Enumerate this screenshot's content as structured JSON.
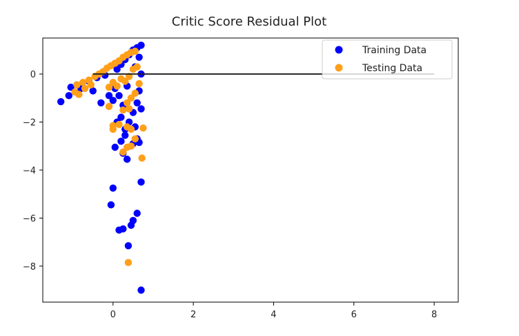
{
  "chart_data": {
    "type": "scatter",
    "title": "Critic Score Residual Plot",
    "xlabel": "",
    "ylabel": "",
    "xlim": [
      -1.75,
      8.6
    ],
    "ylim": [
      -9.5,
      1.5
    ],
    "xticks": [
      0,
      2,
      4,
      6,
      8
    ],
    "yticks": [
      0,
      -2,
      -4,
      -6,
      -8
    ],
    "grid": false,
    "legend": {
      "placement": "top-right"
    },
    "hline": {
      "y": 0,
      "xmin": -0.5,
      "xmax": 8.0,
      "color": "#222222"
    },
    "series": [
      {
        "name": "Training Data",
        "color": "#0000ff",
        "points": [
          [
            -1.3,
            -1.15
          ],
          [
            -1.1,
            -0.9
          ],
          [
            -1.05,
            -0.55
          ],
          [
            -0.9,
            -0.45
          ],
          [
            -0.8,
            -0.6
          ],
          [
            -0.6,
            -0.3
          ],
          [
            -0.5,
            -0.7
          ],
          [
            -0.4,
            -0.15
          ],
          [
            -0.3,
            -1.2
          ],
          [
            -0.2,
            -0.05
          ],
          [
            -0.1,
            -0.9
          ],
          [
            0.0,
            -1.1
          ],
          [
            0.05,
            -0.6
          ],
          [
            0.1,
            0.2
          ],
          [
            0.15,
            -0.9
          ],
          [
            0.2,
            0.4
          ],
          [
            0.25,
            -1.3
          ],
          [
            0.3,
            0.6
          ],
          [
            0.35,
            -0.5
          ],
          [
            0.4,
            0.8
          ],
          [
            0.45,
            0.9
          ],
          [
            0.5,
            1.0
          ],
          [
            0.55,
            0.3
          ],
          [
            0.6,
            1.1
          ],
          [
            0.7,
            1.2
          ],
          [
            0.65,
            0.7
          ],
          [
            0.7,
            0.0
          ],
          [
            0.65,
            -0.7
          ],
          [
            0.7,
            -1.45
          ],
          [
            0.6,
            -1.2
          ],
          [
            0.5,
            -1.6
          ],
          [
            0.4,
            -2.0
          ],
          [
            0.3,
            -2.3
          ],
          [
            0.2,
            -1.8
          ],
          [
            0.1,
            -2.0
          ],
          [
            0.55,
            -2.2
          ],
          [
            0.6,
            -2.7
          ],
          [
            0.65,
            -2.85
          ],
          [
            0.5,
            -2.9
          ],
          [
            0.3,
            -2.55
          ],
          [
            0.2,
            -2.8
          ],
          [
            0.05,
            -3.05
          ],
          [
            0.25,
            -3.3
          ],
          [
            0.35,
            -3.55
          ],
          [
            0.7,
            -4.5
          ],
          [
            0.0,
            -4.75
          ],
          [
            -0.05,
            -5.45
          ],
          [
            0.6,
            -5.8
          ],
          [
            0.5,
            -6.1
          ],
          [
            0.45,
            -6.3
          ],
          [
            0.25,
            -6.45
          ],
          [
            0.15,
            -6.5
          ],
          [
            0.38,
            -7.15
          ],
          [
            0.7,
            -9.0
          ]
        ]
      },
      {
        "name": "Testing Data",
        "color": "#ff9f1a",
        "points": [
          [
            -0.95,
            -0.75
          ],
          [
            -0.9,
            -0.45
          ],
          [
            -0.85,
            -0.85
          ],
          [
            -0.75,
            -0.35
          ],
          [
            -0.7,
            -0.6
          ],
          [
            -0.6,
            -0.25
          ],
          [
            -0.55,
            -0.45
          ],
          [
            -0.45,
            -0.1
          ],
          [
            -0.35,
            0.0
          ],
          [
            -0.25,
            0.1
          ],
          [
            -0.15,
            0.25
          ],
          [
            -0.05,
            0.35
          ],
          [
            0.05,
            0.45
          ],
          [
            0.15,
            0.55
          ],
          [
            0.25,
            0.7
          ],
          [
            0.35,
            0.8
          ],
          [
            0.45,
            0.9
          ],
          [
            0.55,
            0.95
          ],
          [
            0.6,
            0.3
          ],
          [
            0.5,
            0.2
          ],
          [
            0.4,
            -0.1
          ],
          [
            0.3,
            -0.3
          ],
          [
            0.2,
            -0.2
          ],
          [
            0.1,
            -0.5
          ],
          [
            0.0,
            -0.35
          ],
          [
            -0.1,
            -0.55
          ],
          [
            0.65,
            -0.4
          ],
          [
            0.55,
            -0.8
          ],
          [
            0.45,
            -1.0
          ],
          [
            0.35,
            -1.2
          ],
          [
            0.25,
            -1.5
          ],
          [
            0.4,
            -1.45
          ],
          [
            -0.1,
            -1.35
          ],
          [
            0.0,
            -2.15
          ],
          [
            0.0,
            -2.3
          ],
          [
            0.15,
            -2.1
          ],
          [
            0.35,
            -2.2
          ],
          [
            0.45,
            -2.3
          ],
          [
            0.75,
            -2.25
          ],
          [
            0.55,
            -2.7
          ],
          [
            0.45,
            -3.0
          ],
          [
            0.35,
            -3.05
          ],
          [
            0.25,
            -3.25
          ],
          [
            0.72,
            -3.5
          ],
          [
            0.38,
            -7.85
          ]
        ]
      }
    ]
  }
}
